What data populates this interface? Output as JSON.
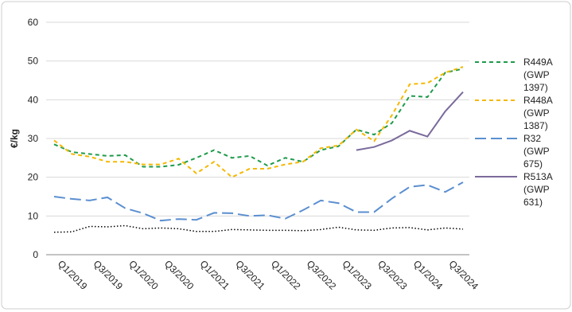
{
  "chart_data": {
    "type": "line",
    "y_label": "€/kg",
    "categories": [
      "Q1/2019",
      null,
      "Q3/2019",
      null,
      "Q1/2020",
      null,
      "Q3/2020",
      null,
      "Q1/2021",
      null,
      "Q3/2021",
      null,
      "Q1/2022",
      null,
      "Q3/2022",
      null,
      "Q1/2023",
      null,
      "Q3/2023",
      null,
      "Q1/2024",
      null,
      "Q3/2024",
      null
    ],
    "series": [
      {
        "name": "R449A (GWP 1397)",
        "color": "#1e9b4b",
        "style": "dashed",
        "values": [
          28.5,
          26.5,
          26,
          25.5,
          25.7,
          22.7,
          22.7,
          23.2,
          25,
          27,
          25,
          25.5,
          23,
          25,
          24,
          27,
          28,
          32.3,
          31,
          34,
          41,
          40.7,
          47,
          48
        ]
      },
      {
        "name": "R448A (GWP 1387)",
        "color": "#f5b800",
        "style": "dashed",
        "values": [
          29.5,
          26,
          25.3,
          24,
          24,
          23.3,
          23.3,
          24.8,
          21,
          24,
          20,
          22.2,
          22.2,
          23.3,
          24,
          27.5,
          28.2,
          32.3,
          29.3,
          36,
          44,
          44.3,
          47,
          48.5
        ]
      },
      {
        "name": "R32 (GWP 675)",
        "color": "#5b8fd0",
        "style": "long-dashed",
        "values": [
          15,
          14.4,
          14,
          14.8,
          12,
          10.7,
          8.8,
          9.2,
          9,
          10.8,
          10.7,
          10,
          10.2,
          9.3,
          11.5,
          14,
          13.3,
          11,
          11,
          14.5,
          17.5,
          18,
          16.2,
          18.7
        ]
      },
      {
        "name": "R513A (GWP 631)",
        "color": "#7a6a9c",
        "style": "solid",
        "values": [
          null,
          null,
          null,
          null,
          null,
          null,
          null,
          null,
          null,
          null,
          null,
          null,
          null,
          null,
          null,
          null,
          null,
          27,
          27.8,
          29.5,
          32,
          30.5,
          37,
          42
        ]
      },
      {
        "color": "#000000",
        "style": "dotted",
        "values": [
          5.8,
          5.9,
          7.3,
          7.2,
          7.5,
          6.7,
          6.9,
          6.7,
          6.0,
          6.0,
          6.5,
          6.4,
          6.3,
          6.3,
          6.2,
          6.5,
          7.1,
          6.4,
          6.3,
          6.9,
          7.0,
          6.4,
          6.9,
          6.6
        ]
      }
    ],
    "ylim": [
      0,
      60
    ],
    "yticks": [
      0,
      10,
      20,
      30,
      40,
      50,
      60
    ],
    "grid": true
  }
}
